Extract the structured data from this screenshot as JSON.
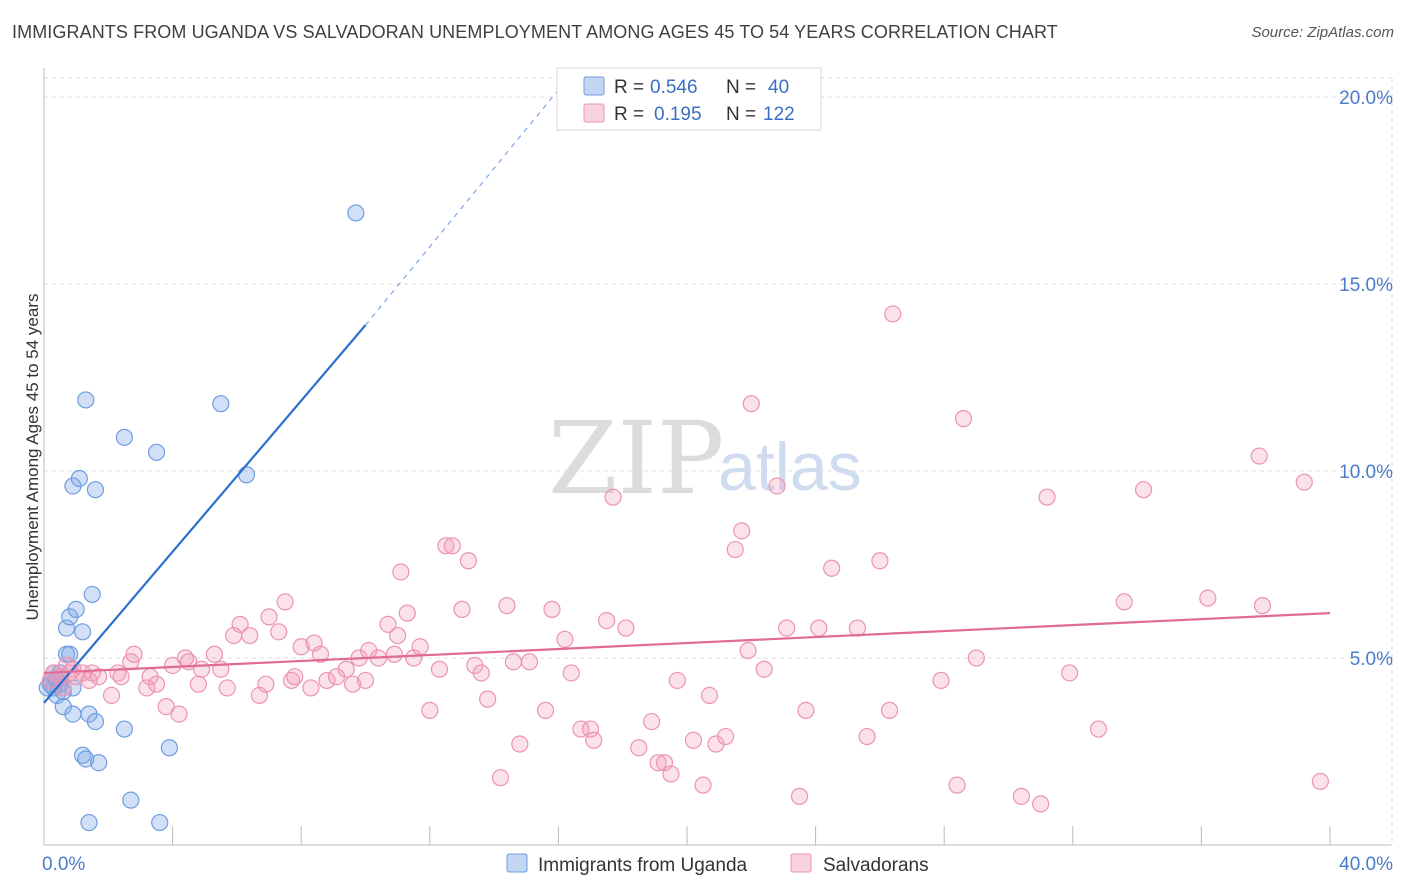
{
  "header": {
    "title": "IMMIGRANTS FROM UGANDA VS SALVADORAN UNEMPLOYMENT AMONG AGES 45 TO 54 YEARS CORRELATION CHART",
    "source": "Source: ZipAtlas.com"
  },
  "watermark": {
    "zip": "ZIP",
    "atlas": "atlas"
  },
  "colors": {
    "blue": "#7ba7e6",
    "blue_line": "#2c6fcf",
    "pink": "#f29bb8",
    "pink_line": "#e06a98",
    "grid": "#dddddd",
    "tick_text": "#4a7cc9"
  },
  "legend": {
    "r_label": "R =",
    "n_label": "N =",
    "series": [
      {
        "r": "0.546",
        "n": "40"
      },
      {
        "r": "0.195",
        "n": "122"
      }
    ]
  },
  "chart_data": {
    "type": "scatter",
    "title": "IMMIGRANTS FROM UGANDA VS SALVADORAN UNEMPLOYMENT AMONG AGES 45 TO 54 YEARS CORRELATION CHART",
    "xlabel": "",
    "ylabel": "Unemployment Among Ages 45 to 54 years",
    "xlim": [
      0,
      40
    ],
    "ylim": [
      0,
      20
    ],
    "x_tick_labels": [
      "0.0%",
      "40.0%"
    ],
    "y_ticks": [
      5,
      10,
      15,
      20
    ],
    "y_tick_labels": [
      "5.0%",
      "10.0%",
      "15.0%",
      "20.0%"
    ],
    "grid": true,
    "series": [
      {
        "name": "Immigrants from Uganda",
        "color": "#7ba7e6",
        "trend": {
          "x0": 0.0,
          "y0": 3.8,
          "x1": 10.0,
          "y1": 13.9,
          "dash_to_x": 16.2,
          "dash_to_y": 20.4
        },
        "points": [
          [
            0.1,
            4.2
          ],
          [
            0.2,
            4.4
          ],
          [
            0.3,
            4.2
          ],
          [
            0.3,
            4.6
          ],
          [
            0.4,
            4.0
          ],
          [
            0.5,
            4.3
          ],
          [
            0.5,
            4.5
          ],
          [
            0.6,
            4.1
          ],
          [
            0.6,
            3.7
          ],
          [
            0.7,
            5.8
          ],
          [
            0.7,
            5.1
          ],
          [
            0.8,
            6.1
          ],
          [
            0.8,
            5.1
          ],
          [
            0.9,
            4.2
          ],
          [
            0.9,
            3.5
          ],
          [
            0.9,
            9.6
          ],
          [
            1.0,
            6.3
          ],
          [
            1.1,
            9.8
          ],
          [
            1.2,
            5.7
          ],
          [
            1.2,
            2.4
          ],
          [
            1.3,
            2.3
          ],
          [
            1.3,
            11.9
          ],
          [
            1.4,
            0.6
          ],
          [
            1.4,
            3.5
          ],
          [
            1.5,
            6.7
          ],
          [
            1.6,
            9.5
          ],
          [
            1.6,
            3.3
          ],
          [
            1.7,
            2.2
          ],
          [
            2.5,
            10.9
          ],
          [
            2.5,
            3.1
          ],
          [
            2.7,
            1.2
          ],
          [
            3.5,
            10.5
          ],
          [
            3.6,
            0.6
          ],
          [
            3.9,
            2.6
          ],
          [
            5.5,
            11.8
          ],
          [
            6.3,
            9.9
          ],
          [
            9.7,
            16.9
          ],
          [
            0.2,
            4.3
          ],
          [
            0.4,
            4.4
          ],
          [
            0.5,
            4.6
          ]
        ]
      },
      {
        "name": "Salvadorans",
        "color": "#f29bb8",
        "trend": {
          "x0": 0.0,
          "y0": 4.6,
          "x1": 40.0,
          "y1": 6.2
        },
        "points": [
          [
            0.2,
            4.4
          ],
          [
            0.3,
            4.6
          ],
          [
            0.5,
            4.5
          ],
          [
            0.6,
            4.2
          ],
          [
            0.7,
            4.8
          ],
          [
            0.8,
            4.6
          ],
          [
            0.9,
            4.7
          ],
          [
            1.0,
            4.5
          ],
          [
            1.2,
            4.6
          ],
          [
            1.4,
            4.4
          ],
          [
            1.5,
            4.6
          ],
          [
            1.7,
            4.5
          ],
          [
            2.1,
            4.0
          ],
          [
            2.3,
            4.6
          ],
          [
            2.4,
            4.5
          ],
          [
            2.7,
            4.9
          ],
          [
            2.8,
            5.1
          ],
          [
            3.2,
            4.2
          ],
          [
            3.3,
            4.5
          ],
          [
            3.5,
            4.3
          ],
          [
            3.8,
            3.7
          ],
          [
            4.0,
            4.8
          ],
          [
            4.2,
            3.5
          ],
          [
            4.4,
            5.0
          ],
          [
            4.5,
            4.9
          ],
          [
            4.8,
            4.3
          ],
          [
            4.9,
            4.7
          ],
          [
            5.3,
            5.1
          ],
          [
            5.5,
            4.7
          ],
          [
            5.7,
            4.2
          ],
          [
            5.9,
            5.6
          ],
          [
            6.1,
            5.9
          ],
          [
            6.4,
            5.6
          ],
          [
            6.7,
            4.0
          ],
          [
            6.9,
            4.3
          ],
          [
            7.0,
            6.1
          ],
          [
            7.3,
            5.7
          ],
          [
            7.5,
            6.5
          ],
          [
            7.7,
            4.4
          ],
          [
            7.8,
            4.5
          ],
          [
            8.0,
            5.3
          ],
          [
            8.3,
            4.2
          ],
          [
            8.4,
            5.4
          ],
          [
            8.6,
            5.1
          ],
          [
            8.8,
            4.4
          ],
          [
            9.1,
            4.5
          ],
          [
            9.4,
            4.7
          ],
          [
            9.6,
            4.3
          ],
          [
            9.8,
            5.0
          ],
          [
            10.0,
            4.4
          ],
          [
            10.1,
            5.2
          ],
          [
            10.4,
            5.0
          ],
          [
            10.7,
            5.9
          ],
          [
            10.9,
            5.1
          ],
          [
            11.0,
            5.6
          ],
          [
            11.1,
            7.3
          ],
          [
            11.3,
            6.2
          ],
          [
            11.5,
            5.0
          ],
          [
            11.7,
            5.3
          ],
          [
            12.0,
            3.6
          ],
          [
            12.3,
            4.7
          ],
          [
            12.5,
            8.0
          ],
          [
            12.7,
            8.0
          ],
          [
            13.0,
            6.3
          ],
          [
            13.2,
            7.6
          ],
          [
            13.4,
            4.8
          ],
          [
            13.6,
            4.6
          ],
          [
            13.8,
            3.9
          ],
          [
            14.2,
            1.8
          ],
          [
            14.4,
            6.4
          ],
          [
            14.6,
            4.9
          ],
          [
            14.8,
            2.7
          ],
          [
            15.1,
            4.9
          ],
          [
            15.6,
            3.6
          ],
          [
            15.8,
            6.3
          ],
          [
            16.2,
            5.5
          ],
          [
            16.4,
            4.6
          ],
          [
            16.7,
            3.1
          ],
          [
            17.0,
            3.1
          ],
          [
            17.1,
            2.8
          ],
          [
            17.5,
            6.0
          ],
          [
            17.7,
            9.3
          ],
          [
            18.1,
            5.8
          ],
          [
            18.5,
            2.6
          ],
          [
            18.9,
            3.3
          ],
          [
            19.1,
            2.2
          ],
          [
            19.3,
            2.2
          ],
          [
            19.5,
            1.9
          ],
          [
            19.7,
            4.4
          ],
          [
            20.2,
            2.8
          ],
          [
            20.5,
            1.6
          ],
          [
            20.7,
            4.0
          ],
          [
            20.9,
            2.7
          ],
          [
            21.2,
            2.9
          ],
          [
            21.5,
            7.9
          ],
          [
            21.7,
            8.4
          ],
          [
            21.9,
            5.2
          ],
          [
            22.0,
            11.8
          ],
          [
            22.4,
            4.7
          ],
          [
            22.8,
            9.6
          ],
          [
            23.1,
            5.8
          ],
          [
            23.5,
            1.3
          ],
          [
            23.7,
            3.6
          ],
          [
            24.1,
            5.8
          ],
          [
            24.5,
            7.4
          ],
          [
            25.3,
            5.8
          ],
          [
            25.6,
            2.9
          ],
          [
            26.0,
            7.6
          ],
          [
            26.3,
            3.6
          ],
          [
            26.4,
            14.2
          ],
          [
            27.9,
            4.4
          ],
          [
            28.4,
            1.6
          ],
          [
            28.6,
            11.4
          ],
          [
            30.4,
            1.3
          ],
          [
            31.0,
            1.1
          ],
          [
            31.2,
            9.3
          ],
          [
            31.9,
            4.6
          ],
          [
            32.8,
            3.1
          ],
          [
            33.6,
            6.5
          ],
          [
            34.2,
            9.5
          ],
          [
            36.2,
            6.6
          ],
          [
            37.8,
            10.4
          ],
          [
            37.9,
            6.4
          ],
          [
            39.2,
            9.7
          ],
          [
            39.7,
            1.7
          ],
          [
            29.0,
            5.0
          ]
        ]
      }
    ]
  }
}
